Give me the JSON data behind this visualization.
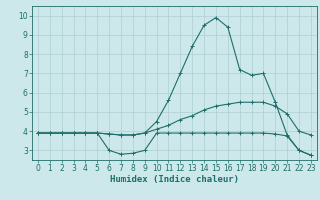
{
  "title": "",
  "xlabel": "Humidex (Indice chaleur)",
  "ylabel": "",
  "bg_color": "#cde8ea",
  "grid_color": "#aecfd2",
  "line_color": "#1e6e6a",
  "xlim": [
    -0.5,
    23.5
  ],
  "ylim": [
    2.5,
    10.5
  ],
  "xticks": [
    0,
    1,
    2,
    3,
    4,
    5,
    6,
    7,
    8,
    9,
    10,
    11,
    12,
    13,
    14,
    15,
    16,
    17,
    18,
    19,
    20,
    21,
    22,
    23
  ],
  "yticks": [
    3,
    4,
    5,
    6,
    7,
    8,
    9,
    10
  ],
  "line1_x": [
    0,
    1,
    2,
    3,
    4,
    5,
    6,
    7,
    8,
    9,
    10,
    11,
    12,
    13,
    14,
    15,
    16,
    17,
    18,
    19,
    20,
    21,
    22,
    23
  ],
  "line1_y": [
    3.9,
    3.9,
    3.9,
    3.9,
    3.9,
    3.9,
    3.0,
    2.8,
    2.85,
    3.0,
    3.9,
    3.9,
    3.9,
    3.9,
    3.9,
    3.9,
    3.9,
    3.9,
    3.9,
    3.9,
    3.85,
    3.75,
    3.0,
    2.75
  ],
  "line2_x": [
    0,
    1,
    2,
    3,
    4,
    5,
    6,
    7,
    8,
    9,
    10,
    11,
    12,
    13,
    14,
    15,
    16,
    17,
    18,
    19,
    20,
    21,
    22,
    23
  ],
  "line2_y": [
    3.9,
    3.9,
    3.9,
    3.9,
    3.9,
    3.9,
    3.85,
    3.8,
    3.8,
    3.9,
    4.1,
    4.3,
    4.6,
    4.8,
    5.1,
    5.3,
    5.4,
    5.5,
    5.5,
    5.5,
    5.3,
    4.9,
    4.0,
    3.8
  ],
  "line3_x": [
    0,
    1,
    2,
    3,
    4,
    5,
    6,
    7,
    8,
    9,
    10,
    11,
    12,
    13,
    14,
    15,
    16,
    17,
    18,
    19,
    20,
    21,
    22,
    23
  ],
  "line3_y": [
    3.9,
    3.9,
    3.9,
    3.9,
    3.9,
    3.9,
    3.85,
    3.8,
    3.8,
    3.9,
    4.5,
    5.6,
    7.0,
    8.4,
    9.5,
    9.9,
    9.4,
    7.2,
    6.9,
    7.0,
    5.5,
    3.8,
    3.0,
    2.75
  ],
  "tick_fontsize": 5.5,
  "xlabel_fontsize": 6.5
}
